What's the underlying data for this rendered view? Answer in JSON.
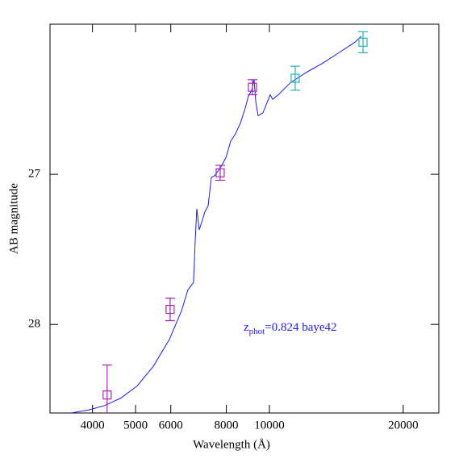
{
  "chart_data": {
    "type": "scatter",
    "xlabel": "Wavelength (Å)",
    "ylabel": "AB magnitude",
    "annotation": {
      "main": "z",
      "sub": "phot",
      "rest": "=0.824 baye42",
      "color": "#1a1aff"
    },
    "log_x": true,
    "invert_y": true,
    "xlim": [
      3210,
      24050
    ],
    "ylim": [
      28.59,
      26.0
    ],
    "xticks": [
      4000,
      5000,
      6000,
      8000,
      10000,
      20000
    ],
    "yticks": [
      27,
      28
    ],
    "model": {
      "color": "#1a1aff",
      "x": [
        3577,
        3922,
        4264,
        4636,
        5040,
        5479,
        5957,
        6342,
        6557,
        6752,
        6808,
        6866,
        6952,
        7041,
        7158,
        7281,
        7404,
        7528,
        7654,
        7783,
        7980,
        8183,
        8389,
        8602,
        8822,
        8970,
        9122,
        9237,
        9314,
        9432,
        9672,
        9917,
        10042,
        10169,
        10471,
        11148,
        12121,
        13176,
        14327,
        15575,
        16101
      ],
      "values": [
        28.59,
        28.57,
        28.54,
        28.49,
        28.41,
        28.28,
        28.1,
        27.91,
        27.77,
        27.72,
        27.45,
        27.23,
        27.37,
        27.32,
        27.25,
        27.21,
        27.02,
        27.01,
        26.98,
        26.95,
        26.89,
        26.78,
        26.73,
        26.66,
        26.56,
        26.48,
        26.44,
        26.37,
        26.51,
        26.61,
        26.59,
        26.51,
        26.47,
        26.5,
        26.47,
        26.39,
        26.32,
        26.26,
        26.19,
        26.12,
        26.08
      ]
    },
    "points": [
      {
        "color": "#a526b8",
        "x": [
          4315,
          5980,
          7750,
          9160
        ],
        "values": [
          28.47,
          27.9,
          26.99,
          26.42
        ],
        "errors": [
          0.2,
          0.075,
          0.05,
          0.05
        ]
      },
      {
        "color": "#22b4b4",
        "x": [
          11430,
          16240
        ],
        "values": [
          26.36,
          26.12
        ],
        "errors": [
          0.08,
          0.07
        ]
      }
    ]
  }
}
